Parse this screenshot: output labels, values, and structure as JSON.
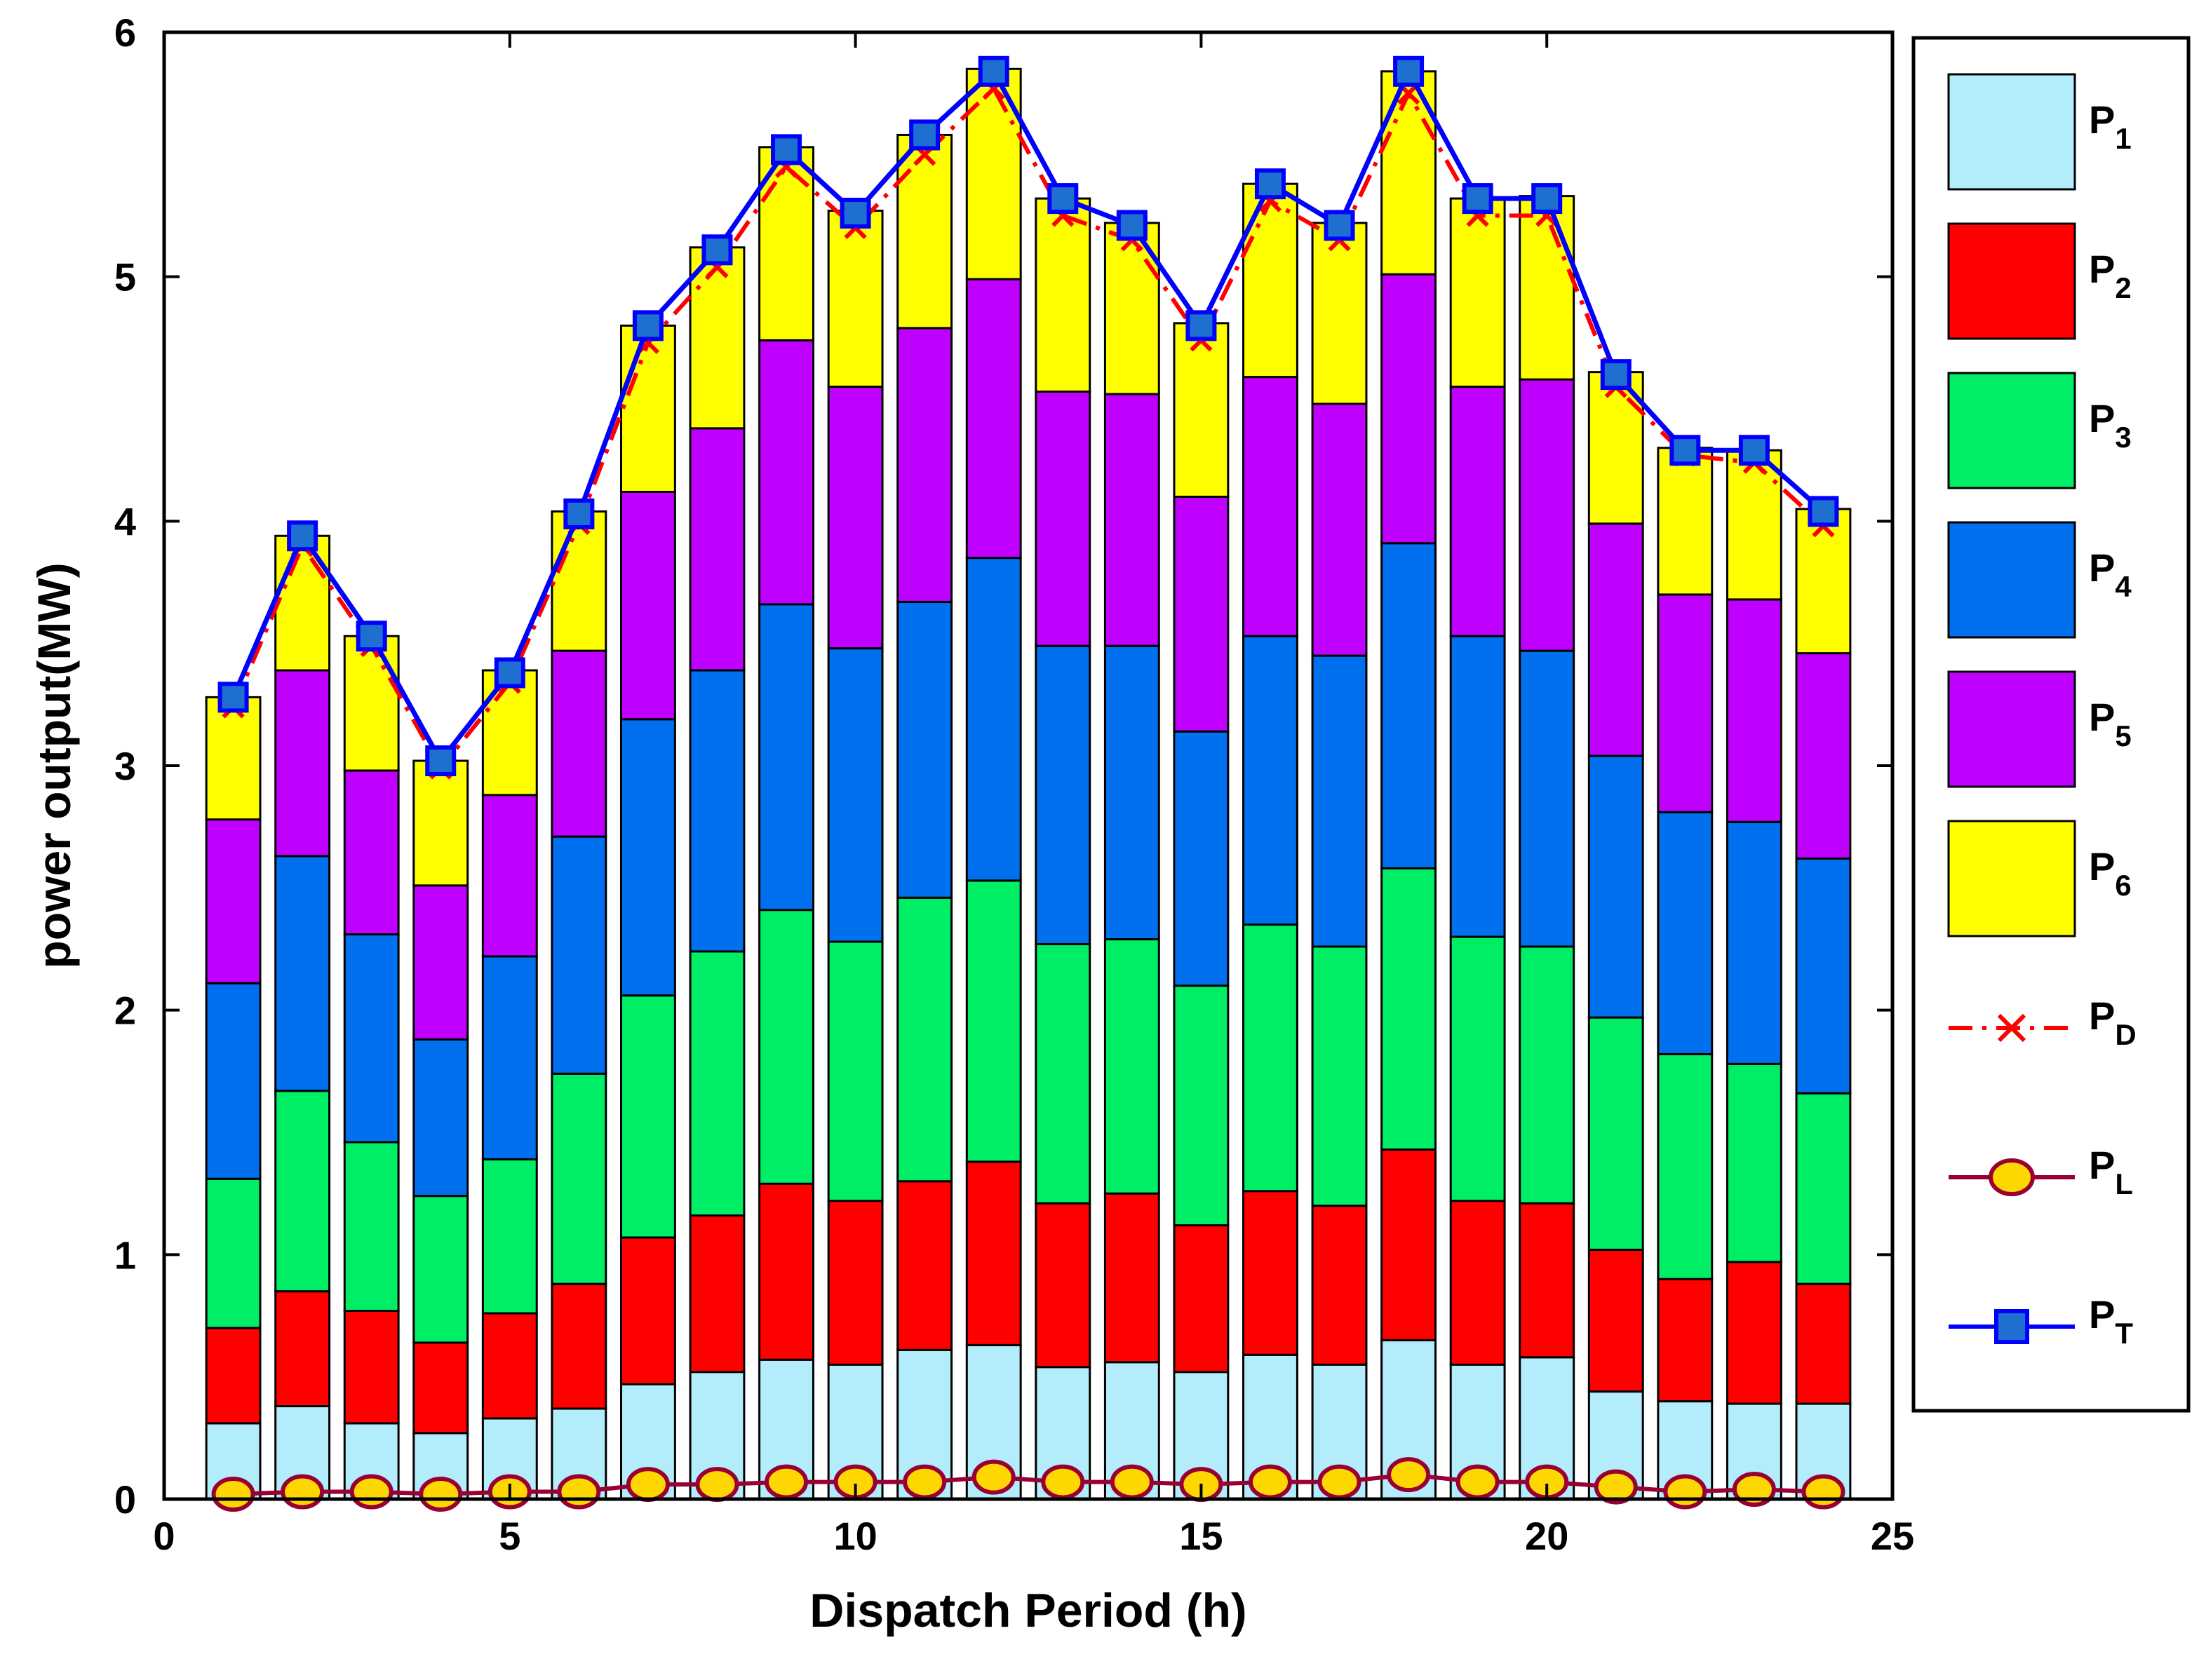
{
  "chart_data": {
    "type": "bar",
    "stacked": true,
    "title": "",
    "xlabel": "Dispatch Period (h)",
    "ylabel": "power output(MW)",
    "xlim": [
      0,
      25
    ],
    "ylim": [
      0,
      6
    ],
    "xticks": [
      0,
      5,
      10,
      15,
      20,
      25
    ],
    "yticks": [
      0,
      1,
      2,
      3,
      4,
      5,
      6
    ],
    "legend_position": "right-outside",
    "x": [
      1,
      2,
      3,
      4,
      5,
      6,
      7,
      8,
      9,
      10,
      11,
      12,
      13,
      14,
      15,
      16,
      17,
      18,
      19,
      20,
      21,
      22,
      23,
      24
    ],
    "series": [
      {
        "name": "P1",
        "base": "P",
        "sub": "1",
        "kind": "bar",
        "color": "#b3ecfb",
        "values": [
          0.31,
          0.38,
          0.31,
          0.27,
          0.33,
          0.37,
          0.47,
          0.52,
          0.57,
          0.55,
          0.61,
          0.63,
          0.54,
          0.56,
          0.52,
          0.59,
          0.55,
          0.65,
          0.55,
          0.58,
          0.44,
          0.4,
          0.39,
          0.39
        ]
      },
      {
        "name": "P2",
        "base": "P",
        "sub": "2",
        "kind": "bar",
        "color": "#ff0000",
        "values": [
          0.39,
          0.47,
          0.46,
          0.37,
          0.43,
          0.51,
          0.6,
          0.64,
          0.72,
          0.67,
          0.69,
          0.75,
          0.67,
          0.69,
          0.6,
          0.67,
          0.65,
          0.78,
          0.67,
          0.63,
          0.58,
          0.5,
          0.58,
          0.49
        ]
      },
      {
        "name": "P3",
        "base": "P",
        "sub": "3",
        "kind": "bar",
        "color": "#00ee66",
        "values": [
          0.61,
          0.82,
          0.69,
          0.6,
          0.63,
          0.86,
          0.99,
          1.08,
          1.12,
          1.06,
          1.16,
          1.15,
          1.06,
          1.04,
          0.98,
          1.09,
          1.06,
          1.15,
          1.08,
          1.05,
          0.95,
          0.92,
          0.81,
          0.78
        ]
      },
      {
        "name": "P4",
        "base": "P",
        "sub": "4",
        "kind": "bar",
        "color": "#0070ee",
        "values": [
          0.8,
          0.96,
          0.85,
          0.64,
          0.83,
          0.97,
          1.13,
          1.15,
          1.25,
          1.2,
          1.21,
          1.32,
          1.22,
          1.2,
          1.04,
          1.18,
          1.19,
          1.33,
          1.23,
          1.21,
          1.07,
          0.99,
          0.99,
          0.96
        ]
      },
      {
        "name": "P5",
        "base": "P",
        "sub": "5",
        "kind": "bar",
        "color": "#c000ff",
        "values": [
          0.67,
          0.76,
          0.67,
          0.63,
          0.66,
          0.76,
          0.93,
          0.99,
          1.08,
          1.07,
          1.12,
          1.14,
          1.04,
          1.03,
          0.96,
          1.06,
          1.03,
          1.1,
          1.02,
          1.11,
          0.95,
          0.89,
          0.91,
          0.84
        ]
      },
      {
        "name": "P6",
        "base": "P",
        "sub": "6",
        "kind": "bar",
        "color": "#ffff00",
        "values": [
          0.5,
          0.55,
          0.55,
          0.51,
          0.51,
          0.57,
          0.68,
          0.74,
          0.79,
          0.72,
          0.79,
          0.86,
          0.79,
          0.7,
          0.71,
          0.79,
          0.74,
          0.83,
          0.77,
          0.75,
          0.62,
          0.6,
          0.61,
          0.59
        ]
      },
      {
        "name": "PD",
        "base": "P",
        "sub": "D",
        "kind": "line",
        "marker": "x",
        "line_style": "dash-dot",
        "color": "#ff0000",
        "values": [
          3.24,
          3.9,
          3.49,
          2.99,
          3.34,
          3.99,
          4.73,
          5.04,
          5.45,
          5.2,
          5.5,
          5.77,
          5.25,
          5.15,
          4.74,
          5.31,
          5.15,
          5.75,
          5.25,
          5.25,
          4.55,
          4.27,
          4.24,
          3.98
        ]
      },
      {
        "name": "PL",
        "base": "P",
        "sub": "L",
        "kind": "line",
        "marker": "circle",
        "line_style": "solid",
        "color": "#990033",
        "marker_fill": "#ffd700",
        "values": [
          0.02,
          0.03,
          0.03,
          0.02,
          0.03,
          0.03,
          0.06,
          0.06,
          0.07,
          0.07,
          0.07,
          0.09,
          0.07,
          0.07,
          0.06,
          0.07,
          0.07,
          0.1,
          0.07,
          0.07,
          0.05,
          0.03,
          0.04,
          0.03
        ]
      },
      {
        "name": "PT",
        "base": "P",
        "sub": "T",
        "kind": "line",
        "marker": "square",
        "line_style": "solid",
        "color": "#0000ff",
        "marker_fill": "#1e6fd0",
        "values": [
          3.28,
          3.94,
          3.53,
          3.02,
          3.38,
          4.03,
          4.8,
          5.11,
          5.52,
          5.26,
          5.58,
          5.84,
          5.32,
          5.21,
          4.8,
          5.38,
          5.21,
          5.84,
          5.32,
          5.32,
          4.6,
          4.29,
          4.29,
          4.04
        ]
      }
    ]
  }
}
